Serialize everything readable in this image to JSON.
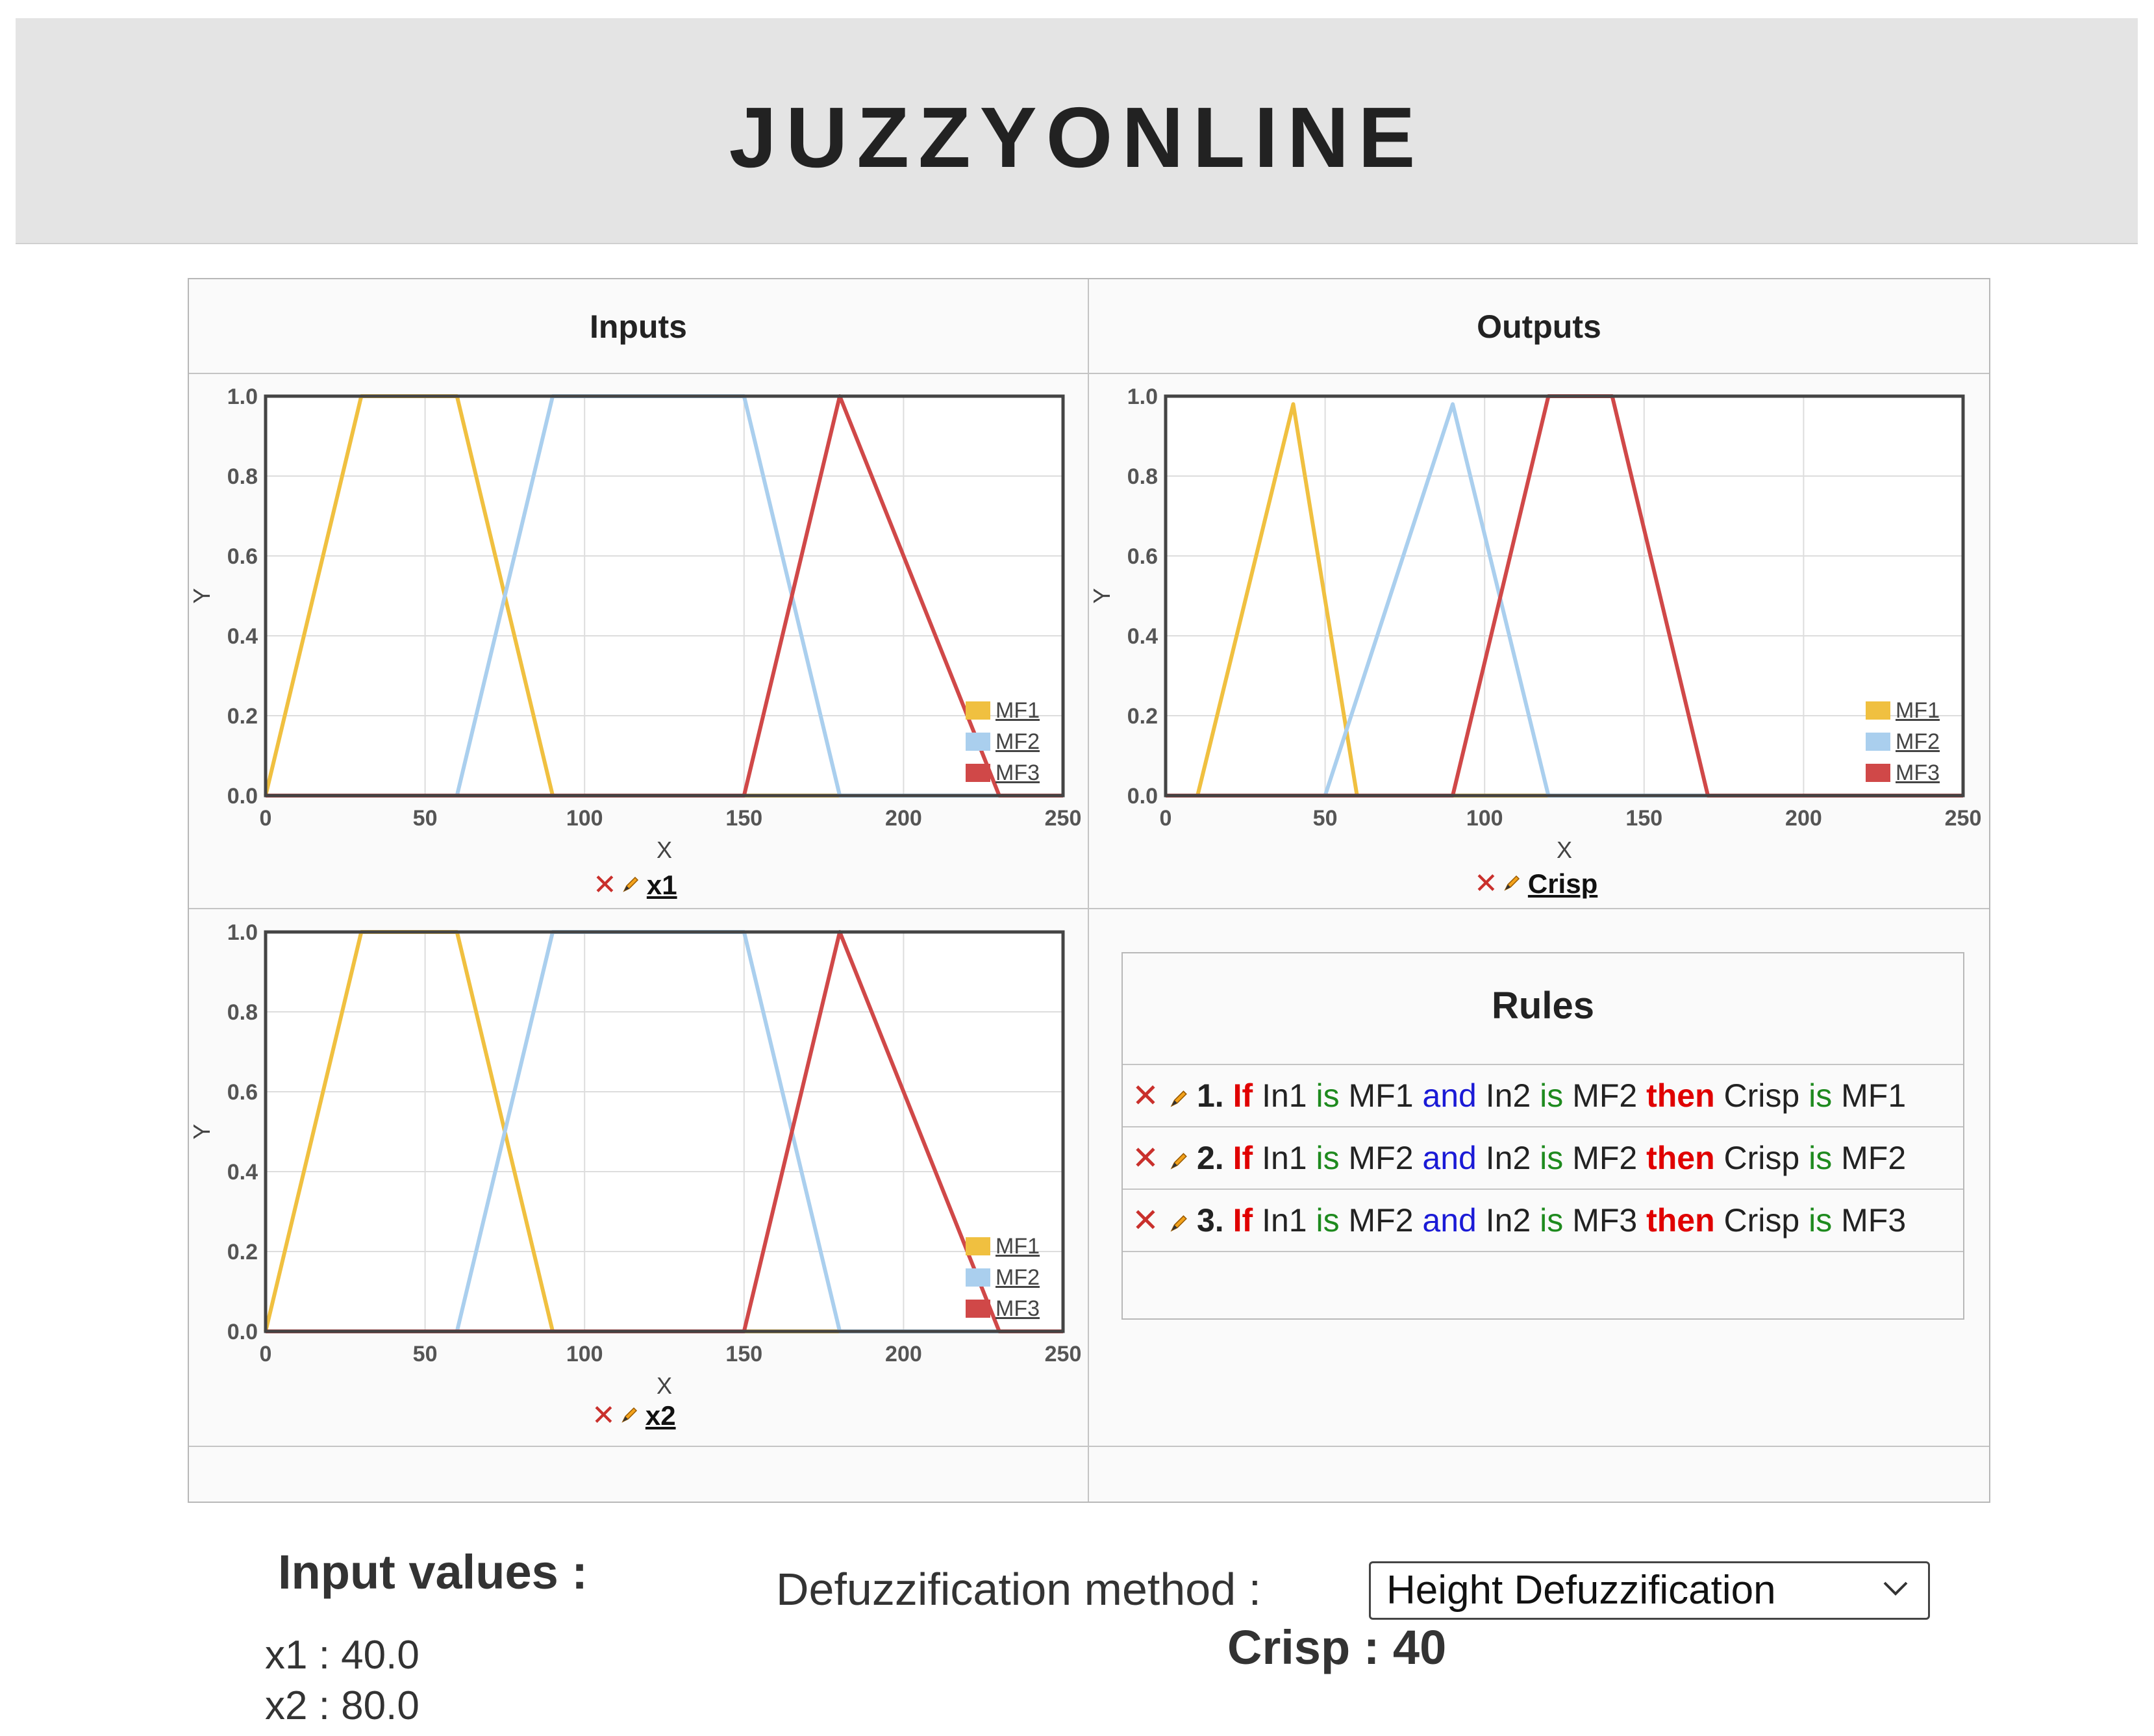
{
  "header": {
    "title": "JUZZYONLINE"
  },
  "grid": {
    "inputs_heading": "Inputs",
    "outputs_heading": "Outputs"
  },
  "icons": {
    "delete": "close-icon",
    "edit": "pencil-icon",
    "dropdown": "chevron-down-icon"
  },
  "colors": {
    "mf1": "#f0c040",
    "mf2": "#aacfee",
    "mf3": "#d04848"
  },
  "charts": [
    {
      "id": "x1",
      "caption": "x1",
      "xlabel": "X",
      "ylabel": "Y",
      "xlim": [
        0,
        250
      ],
      "ylim": [
        0,
        1
      ],
      "xticks": [
        "0",
        "50",
        "100",
        "150",
        "200",
        "250"
      ],
      "yticks": [
        "0.0",
        "0.2",
        "0.4",
        "0.6",
        "0.8",
        "1.0"
      ],
      "legend": [
        "MF1",
        "MF2",
        "MF3"
      ]
    },
    {
      "id": "crisp",
      "caption": "Crisp",
      "xlabel": "X",
      "ylabel": "Y",
      "xlim": [
        0,
        250
      ],
      "ylim": [
        0,
        1
      ],
      "xticks": [
        "0",
        "50",
        "100",
        "150",
        "200",
        "250"
      ],
      "yticks": [
        "0.0",
        "0.2",
        "0.4",
        "0.6",
        "0.8",
        "1.0"
      ],
      "legend": [
        "MF1",
        "MF2",
        "MF3"
      ]
    },
    {
      "id": "x2",
      "caption": "x2",
      "xlabel": "X",
      "ylabel": "Y",
      "xlim": [
        0,
        250
      ],
      "ylim": [
        0,
        1
      ],
      "xticks": [
        "0",
        "50",
        "100",
        "150",
        "200",
        "250"
      ],
      "yticks": [
        "0.0",
        "0.2",
        "0.4",
        "0.6",
        "0.8",
        "1.0"
      ],
      "legend": [
        "MF1",
        "MF2",
        "MF3"
      ]
    }
  ],
  "chart_data": [
    {
      "type": "line",
      "xlabel": "X",
      "ylabel": "Y",
      "xlim": [
        0,
        250
      ],
      "ylim": [
        0,
        1
      ],
      "grid": true,
      "legend": "bottom-right",
      "series": [
        {
          "name": "MF1",
          "x": [
            0,
            30,
            60,
            90,
            250
          ],
          "y": [
            0,
            1,
            1,
            0,
            0
          ]
        },
        {
          "name": "MF2",
          "x": [
            0,
            60,
            90,
            150,
            180,
            250
          ],
          "y": [
            0,
            0,
            1,
            1,
            0,
            0
          ]
        },
        {
          "name": "MF3",
          "x": [
            0,
            150,
            180,
            230,
            250
          ],
          "y": [
            0,
            0,
            1,
            0,
            0
          ]
        }
      ]
    },
    {
      "type": "line",
      "xlabel": "X",
      "ylabel": "Y",
      "xlim": [
        0,
        250
      ],
      "ylim": [
        0,
        1
      ],
      "grid": true,
      "legend": "bottom-right",
      "series": [
        {
          "name": "MF1",
          "x": [
            0,
            10,
            40,
            60,
            250
          ],
          "y": [
            0,
            0,
            0.98,
            0,
            0
          ]
        },
        {
          "name": "MF2",
          "x": [
            0,
            50,
            90,
            120,
            250
          ],
          "y": [
            0,
            0,
            0.98,
            0,
            0
          ]
        },
        {
          "name": "MF3",
          "x": [
            0,
            90,
            120,
            140,
            170,
            250
          ],
          "y": [
            0,
            0,
            1,
            1,
            0,
            0
          ]
        }
      ]
    },
    {
      "type": "line",
      "xlabel": "X",
      "ylabel": "Y",
      "xlim": [
        0,
        250
      ],
      "ylim": [
        0,
        1
      ],
      "grid": true,
      "legend": "bottom-right",
      "series": [
        {
          "name": "MF1",
          "x": [
            0,
            30,
            60,
            90,
            250
          ],
          "y": [
            0,
            1,
            1,
            0,
            0
          ]
        },
        {
          "name": "MF2",
          "x": [
            0,
            60,
            90,
            150,
            180,
            250
          ],
          "y": [
            0,
            0,
            1,
            1,
            0,
            0
          ]
        },
        {
          "name": "MF3",
          "x": [
            0,
            150,
            180,
            230,
            250
          ],
          "y": [
            0,
            0,
            1,
            0,
            0
          ]
        }
      ]
    }
  ],
  "rules": {
    "title": "Rules",
    "items": [
      {
        "num": "1.",
        "if": "If",
        "in1": "In1",
        "is1": "is",
        "mf_a": "MF1",
        "and": "and",
        "in2": "In2",
        "is2": "is",
        "mf_b": "MF2",
        "then": "then",
        "out": "Crisp",
        "is3": "is",
        "mf_c": "MF1"
      },
      {
        "num": "2.",
        "if": "If",
        "in1": "In1",
        "is1": "is",
        "mf_a": "MF2",
        "and": "and",
        "in2": "In2",
        "is2": "is",
        "mf_b": "MF2",
        "then": "then",
        "out": "Crisp",
        "is3": "is",
        "mf_c": "MF2"
      },
      {
        "num": "3.",
        "if": "If",
        "in1": "In1",
        "is1": "is",
        "mf_a": "MF2",
        "and": "and",
        "in2": "In2",
        "is2": "is",
        "mf_b": "MF3",
        "then": "then",
        "out": "Crisp",
        "is3": "is",
        "mf_c": "MF3"
      }
    ]
  },
  "inputs": {
    "title": "Input values :",
    "values": [
      "x1 : 40.0",
      "x2 : 80.0"
    ]
  },
  "defuzz": {
    "label": "Defuzzification method :",
    "selected": "Height Defuzzification",
    "result": "Crisp : 40"
  }
}
